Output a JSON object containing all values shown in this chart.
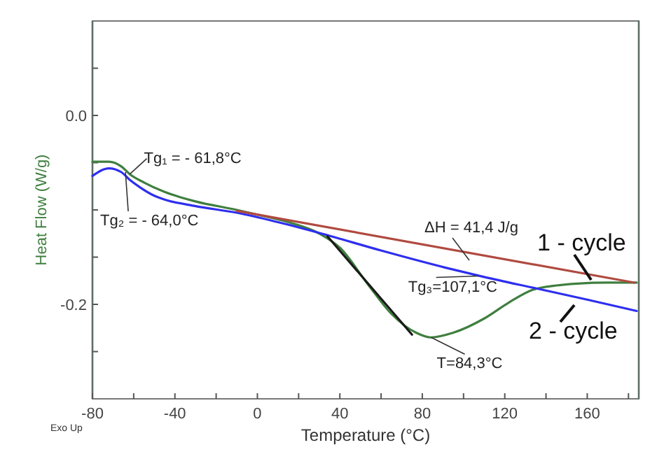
{
  "chart_data": {
    "type": "line",
    "xlabel": "Temperature (°C)",
    "ylabel": "Heat Flow (W/g)",
    "xlim": [
      -80,
      185
    ],
    "ylim": [
      -0.3,
      0.1
    ],
    "xticks": [
      -80,
      {
        "value": -60,
        "label": null
      },
      -40,
      {
        "value": -20,
        "label": null
      },
      0,
      {
        "value": 20,
        "label": null
      },
      40,
      {
        "value": 60,
        "label": null
      },
      80,
      {
        "value": 100,
        "label": null
      },
      120,
      {
        "value": 140,
        "label": null
      },
      160,
      {
        "value": 180,
        "label": null
      }
    ],
    "yticks": [
      {
        "value": -0.25,
        "label": null
      },
      {
        "value": -0.2,
        "label": "-0.2"
      },
      {
        "value": -0.15,
        "label": null
      },
      {
        "value": -0.1,
        "label": null
      },
      {
        "value": -0.05,
        "label": null
      },
      {
        "value": 0,
        "label": "0.0"
      },
      {
        "value": 0.05,
        "label": null
      }
    ],
    "grid": false,
    "legend": false,
    "marker": "none",
    "line_style": "solid",
    "series": [
      {
        "name": "1 - cycle",
        "color": "#3f7f3f",
        "x": [
          -80,
          -72,
          -66,
          -62,
          -55,
          -45,
          -30,
          -10,
          0,
          15,
          30,
          40,
          54,
          65,
          77,
          84.3,
          95,
          110,
          122,
          133,
          145,
          155,
          170,
          184
        ],
        "values": [
          -0.049,
          -0.049,
          -0.054,
          -0.062,
          -0.071,
          -0.081,
          -0.091,
          -0.1,
          -0.105,
          -0.113,
          -0.125,
          -0.14,
          -0.18,
          -0.21,
          -0.23,
          -0.235,
          -0.23,
          -0.215,
          -0.198,
          -0.185,
          -0.18,
          -0.178,
          -0.177,
          -0.177
        ]
      },
      {
        "name": "2 - cycle",
        "color": "#2e2ef0",
        "x": [
          -80,
          -72,
          -66,
          -62,
          -57,
          -50,
          -45,
          -30,
          -10,
          10,
          31,
          60,
          91,
          110,
          135,
          160,
          184
        ],
        "values": [
          -0.064,
          -0.056,
          -0.06,
          -0.068,
          -0.076,
          -0.085,
          -0.089,
          -0.096,
          -0.103,
          -0.113,
          -0.125,
          -0.143,
          -0.161,
          -0.171,
          -0.183,
          -0.195,
          -0.207
        ]
      },
      {
        "color": "#b04a40",
        "x": [
          -10,
          183
        ],
        "values": [
          -0.101,
          -0.177
        ]
      },
      {
        "color": "#1a1a1a",
        "x": [
          34,
          75
        ],
        "values": [
          -0.128,
          -0.232
        ]
      }
    ],
    "annotations": [
      {
        "text": "Tg₁ = - 61,8°C",
        "x": -61.8,
        "y": -0.062
      },
      {
        "text": "Tg₂ = - 64,0°C",
        "x": -64,
        "y": -0.06
      },
      {
        "text": "Tg₃=107,1°C",
        "x": 107.1,
        "y": -0.17
      },
      {
        "text": "T=84,3°C",
        "x": 84.3,
        "y": -0.235
      },
      "ΔH = 41,4 J/g",
      "Exo Up"
    ]
  }
}
